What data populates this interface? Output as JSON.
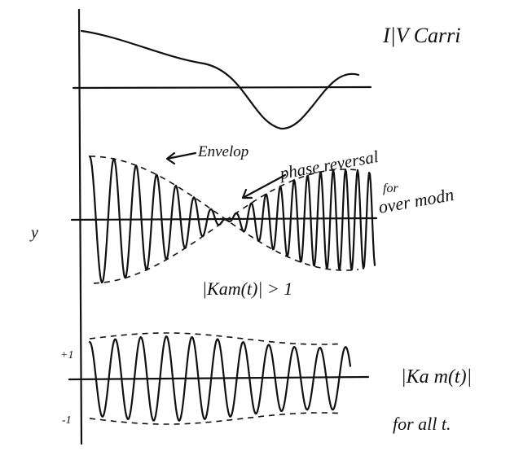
{
  "header": {
    "title": "I|V Carri"
  },
  "labels": {
    "envelope": "Envelop",
    "phase_reversal": "phase reversal",
    "for": "for",
    "over_modulation": "over modn",
    "y": "y",
    "condition_over": "|Kam(t)| > 1",
    "plus_one": "+1",
    "minus_one": "-1",
    "condition_under": "|Ka m(t)|",
    "for_all": "for all t."
  }
}
